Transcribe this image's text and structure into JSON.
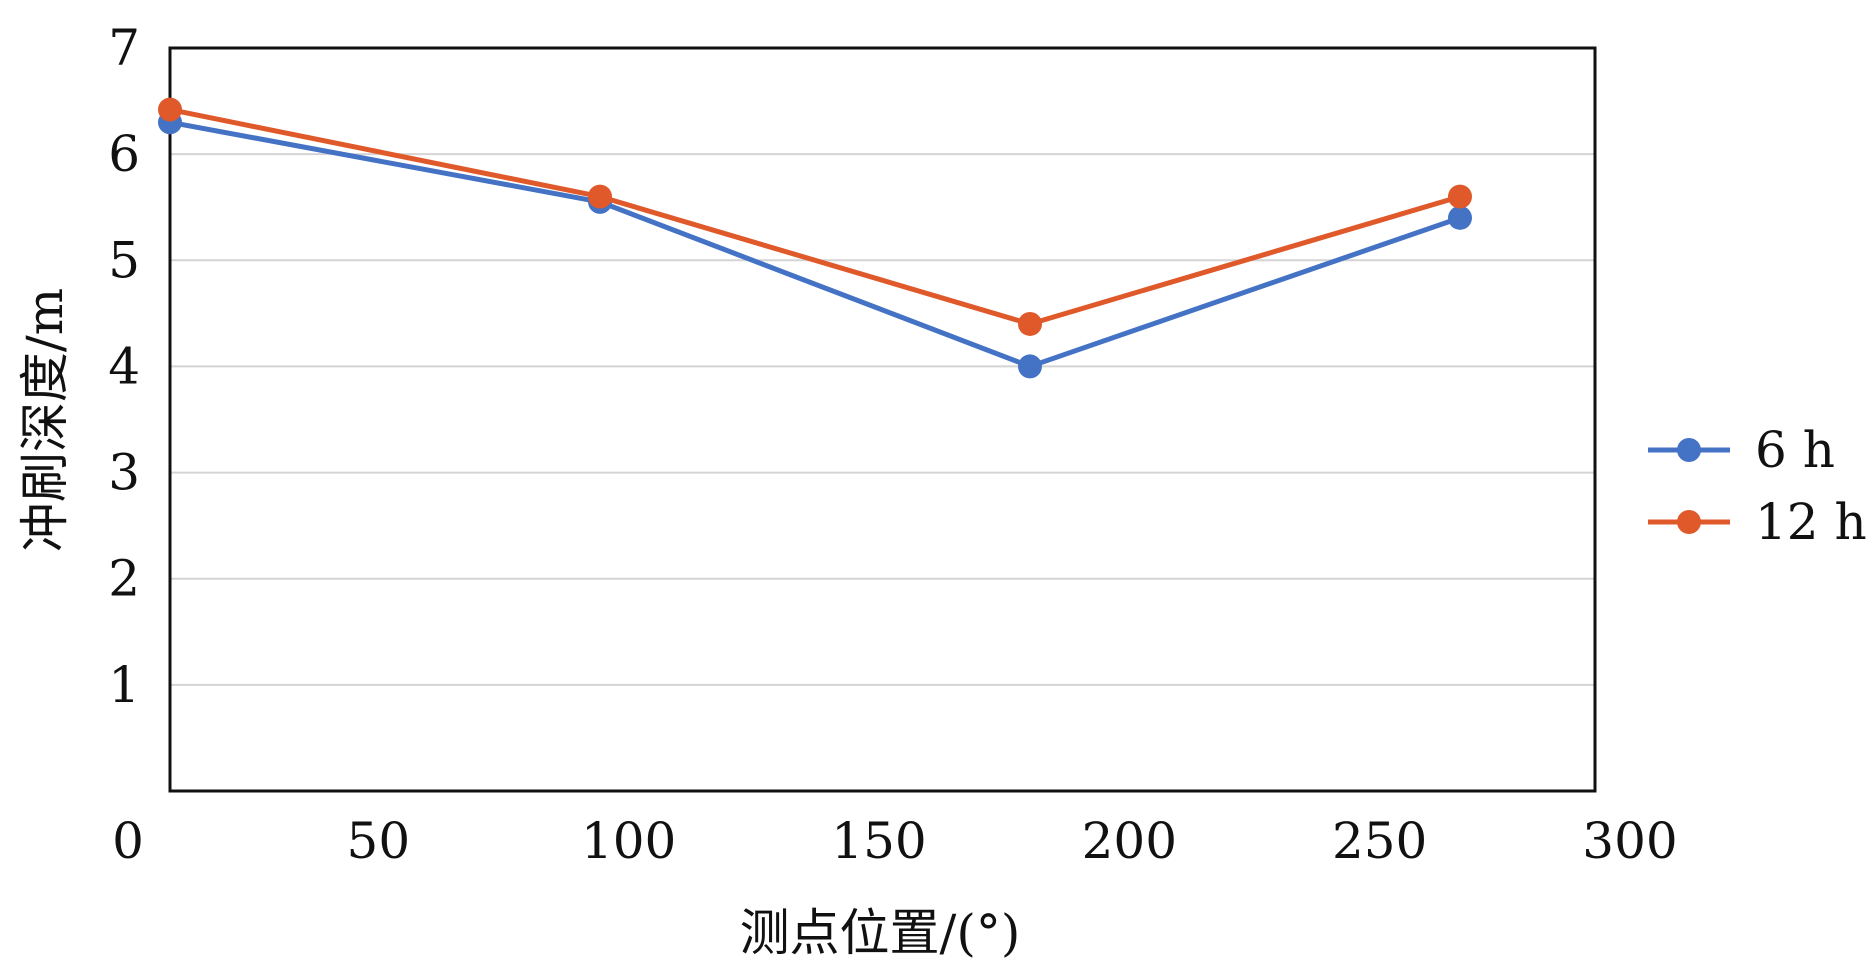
{
  "chart_data": {
    "type": "line",
    "title": "",
    "xlabel": "测点位置/(°)",
    "ylabel": "冲刷深度/m",
    "xlim": [
      0,
      300
    ],
    "ylim": [
      0,
      7
    ],
    "xticks": [
      "0",
      "50",
      "100",
      "150",
      "200",
      "250",
      "300"
    ],
    "yticks": [
      "1",
      "2",
      "3",
      "4",
      "5",
      "6",
      "7"
    ],
    "grid": "horizontal",
    "legend_position": "right",
    "series": [
      {
        "name": "6 h",
        "color": "#4472c4",
        "x": [
          0,
          90,
          180,
          270
        ],
        "y": [
          6.3,
          5.55,
          4.0,
          5.4
        ]
      },
      {
        "name": "12 h",
        "color": "#e0592a",
        "x": [
          0,
          90,
          180,
          270
        ],
        "y": [
          6.42,
          5.6,
          4.4,
          5.6
        ]
      }
    ]
  }
}
